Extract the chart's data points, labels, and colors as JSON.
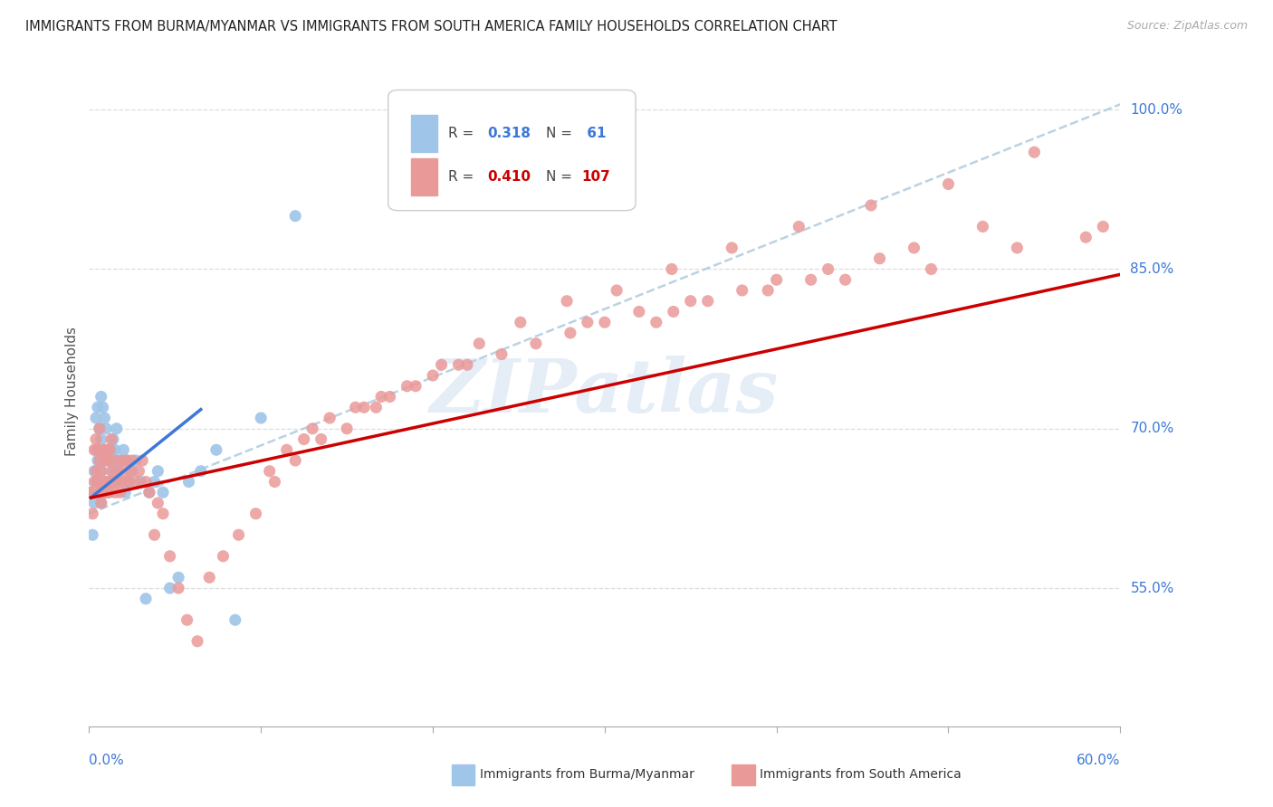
{
  "title": "IMMIGRANTS FROM BURMA/MYANMAR VS IMMIGRANTS FROM SOUTH AMERICA FAMILY HOUSEHOLDS CORRELATION CHART",
  "source": "Source: ZipAtlas.com",
  "ylabel": "Family Households",
  "blue_color": "#9fc5e8",
  "pink_color": "#ea9999",
  "blue_line_color": "#3c78d8",
  "pink_line_color": "#cc0000",
  "dashed_line_color": "#b3cde0",
  "xlim": [
    0.0,
    0.6
  ],
  "ylim": [
    0.42,
    1.05
  ],
  "ytick_values": [
    0.55,
    0.7,
    0.85,
    1.0
  ],
  "ytick_labels": [
    "55.0%",
    "70.0%",
    "85.0%",
    "100.0%"
  ],
  "xtick_values": [
    0.0,
    0.1,
    0.2,
    0.3,
    0.4,
    0.5,
    0.6
  ],
  "blue_R": "0.318",
  "blue_N": "61",
  "pink_R": "0.410",
  "pink_N": "107",
  "blue_scatter_x": [
    0.001,
    0.002,
    0.003,
    0.003,
    0.004,
    0.004,
    0.004,
    0.005,
    0.005,
    0.005,
    0.006,
    0.006,
    0.006,
    0.007,
    0.007,
    0.007,
    0.007,
    0.008,
    0.008,
    0.008,
    0.009,
    0.009,
    0.009,
    0.01,
    0.01,
    0.01,
    0.011,
    0.011,
    0.012,
    0.012,
    0.013,
    0.013,
    0.014,
    0.014,
    0.015,
    0.015,
    0.016,
    0.016,
    0.017,
    0.018,
    0.019,
    0.02,
    0.021,
    0.022,
    0.023,
    0.025,
    0.027,
    0.03,
    0.033,
    0.035,
    0.038,
    0.04,
    0.043,
    0.047,
    0.052,
    0.058,
    0.065,
    0.074,
    0.085,
    0.1,
    0.12
  ],
  "blue_scatter_y": [
    0.64,
    0.6,
    0.63,
    0.66,
    0.65,
    0.68,
    0.71,
    0.72,
    0.65,
    0.67,
    0.64,
    0.67,
    0.7,
    0.63,
    0.66,
    0.69,
    0.73,
    0.64,
    0.67,
    0.72,
    0.65,
    0.68,
    0.71,
    0.64,
    0.67,
    0.7,
    0.65,
    0.68,
    0.64,
    0.67,
    0.65,
    0.68,
    0.66,
    0.69,
    0.65,
    0.68,
    0.67,
    0.7,
    0.66,
    0.67,
    0.65,
    0.68,
    0.64,
    0.67,
    0.65,
    0.66,
    0.67,
    0.65,
    0.54,
    0.64,
    0.65,
    0.66,
    0.64,
    0.55,
    0.56,
    0.65,
    0.66,
    0.68,
    0.52,
    0.71,
    0.9
  ],
  "pink_scatter_x": [
    0.001,
    0.002,
    0.003,
    0.003,
    0.004,
    0.004,
    0.005,
    0.005,
    0.006,
    0.006,
    0.006,
    0.007,
    0.007,
    0.008,
    0.008,
    0.009,
    0.009,
    0.01,
    0.01,
    0.011,
    0.011,
    0.012,
    0.012,
    0.013,
    0.013,
    0.014,
    0.015,
    0.015,
    0.016,
    0.017,
    0.018,
    0.019,
    0.02,
    0.021,
    0.022,
    0.023,
    0.024,
    0.025,
    0.027,
    0.029,
    0.031,
    0.033,
    0.035,
    0.038,
    0.04,
    0.043,
    0.047,
    0.052,
    0.057,
    0.063,
    0.07,
    0.078,
    0.087,
    0.097,
    0.108,
    0.12,
    0.135,
    0.15,
    0.167,
    0.185,
    0.205,
    0.227,
    0.251,
    0.278,
    0.307,
    0.339,
    0.374,
    0.413,
    0.455,
    0.5,
    0.55,
    0.33,
    0.28,
    0.19,
    0.16,
    0.14,
    0.26,
    0.22,
    0.3,
    0.35,
    0.4,
    0.43,
    0.46,
    0.38,
    0.24,
    0.17,
    0.13,
    0.36,
    0.29,
    0.32,
    0.42,
    0.48,
    0.52,
    0.2,
    0.58,
    0.59,
    0.54,
    0.49,
    0.44,
    0.395,
    0.34,
    0.215,
    0.175,
    0.155,
    0.125,
    0.115,
    0.105
  ],
  "pink_scatter_y": [
    0.64,
    0.62,
    0.65,
    0.68,
    0.66,
    0.69,
    0.65,
    0.68,
    0.64,
    0.67,
    0.7,
    0.63,
    0.66,
    0.65,
    0.68,
    0.64,
    0.67,
    0.65,
    0.68,
    0.64,
    0.67,
    0.65,
    0.68,
    0.66,
    0.69,
    0.65,
    0.64,
    0.67,
    0.65,
    0.66,
    0.64,
    0.67,
    0.65,
    0.66,
    0.67,
    0.65,
    0.66,
    0.67,
    0.65,
    0.66,
    0.67,
    0.65,
    0.64,
    0.6,
    0.63,
    0.62,
    0.58,
    0.55,
    0.52,
    0.5,
    0.56,
    0.58,
    0.6,
    0.62,
    0.65,
    0.67,
    0.69,
    0.7,
    0.72,
    0.74,
    0.76,
    0.78,
    0.8,
    0.82,
    0.83,
    0.85,
    0.87,
    0.89,
    0.91,
    0.93,
    0.96,
    0.8,
    0.79,
    0.74,
    0.72,
    0.71,
    0.78,
    0.76,
    0.8,
    0.82,
    0.84,
    0.85,
    0.86,
    0.83,
    0.77,
    0.73,
    0.7,
    0.82,
    0.8,
    0.81,
    0.84,
    0.87,
    0.89,
    0.75,
    0.88,
    0.89,
    0.87,
    0.85,
    0.84,
    0.83,
    0.81,
    0.76,
    0.73,
    0.72,
    0.69,
    0.68,
    0.66
  ]
}
